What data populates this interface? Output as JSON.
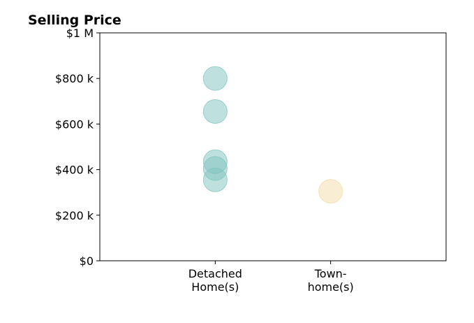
{
  "chart_data": {
    "type": "scatter",
    "title": "Selling Price",
    "xlabel": "",
    "ylabel": "",
    "categories": [
      [
        "Detached",
        "Home(s)"
      ],
      [
        "Town-",
        "home(s)"
      ]
    ],
    "y_tick_labels": [
      "$0",
      "$200 k",
      "$400 k",
      "$600 k",
      "$800 k",
      "$1 M"
    ],
    "y_tick_values": [
      0,
      200000,
      400000,
      600000,
      800000,
      1000000
    ],
    "ylim": [
      0,
      1000000
    ],
    "xlim": [
      -1,
      2
    ],
    "grid": false,
    "series": [
      {
        "category_index": 0,
        "color": "#7fc4bd",
        "values": [
          800000,
          655000,
          435000,
          405000,
          355000
        ]
      },
      {
        "category_index": 1,
        "color": "#f3dcaa",
        "values": [
          305000
        ]
      }
    ]
  }
}
